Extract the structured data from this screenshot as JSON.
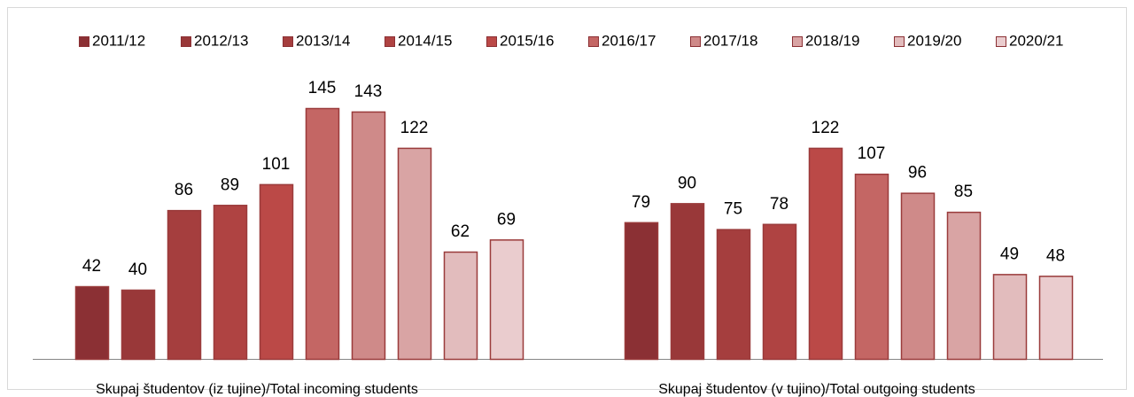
{
  "chart_data": {
    "type": "bar",
    "categories": [
      "Skupaj študentov (iz tujine)/Total incoming students",
      "Skupaj študentov (v tujino)/Total outgoing students"
    ],
    "series": [
      {
        "name": "2011/12",
        "color": "#8B3034",
        "values": [
          42,
          79
        ]
      },
      {
        "name": "2012/13",
        "color": "#993839",
        "values": [
          40,
          90
        ]
      },
      {
        "name": "2013/14",
        "color": "#A53E3E",
        "values": [
          86,
          75
        ]
      },
      {
        "name": "2014/15",
        "color": "#AF4342",
        "values": [
          89,
          78
        ]
      },
      {
        "name": "2015/16",
        "color": "#BB4947",
        "values": [
          101,
          122
        ]
      },
      {
        "name": "2016/17",
        "color": "#C46664",
        "values": [
          145,
          107
        ]
      },
      {
        "name": "2017/18",
        "color": "#CF8A89",
        "values": [
          143,
          96
        ]
      },
      {
        "name": "2018/19",
        "color": "#D9A4A4",
        "values": [
          122,
          85
        ]
      },
      {
        "name": "2019/20",
        "color": "#E2BCBD",
        "values": [
          62,
          49
        ]
      },
      {
        "name": "2020/21",
        "color": "#EACCCE",
        "values": [
          69,
          48
        ]
      }
    ]
  }
}
